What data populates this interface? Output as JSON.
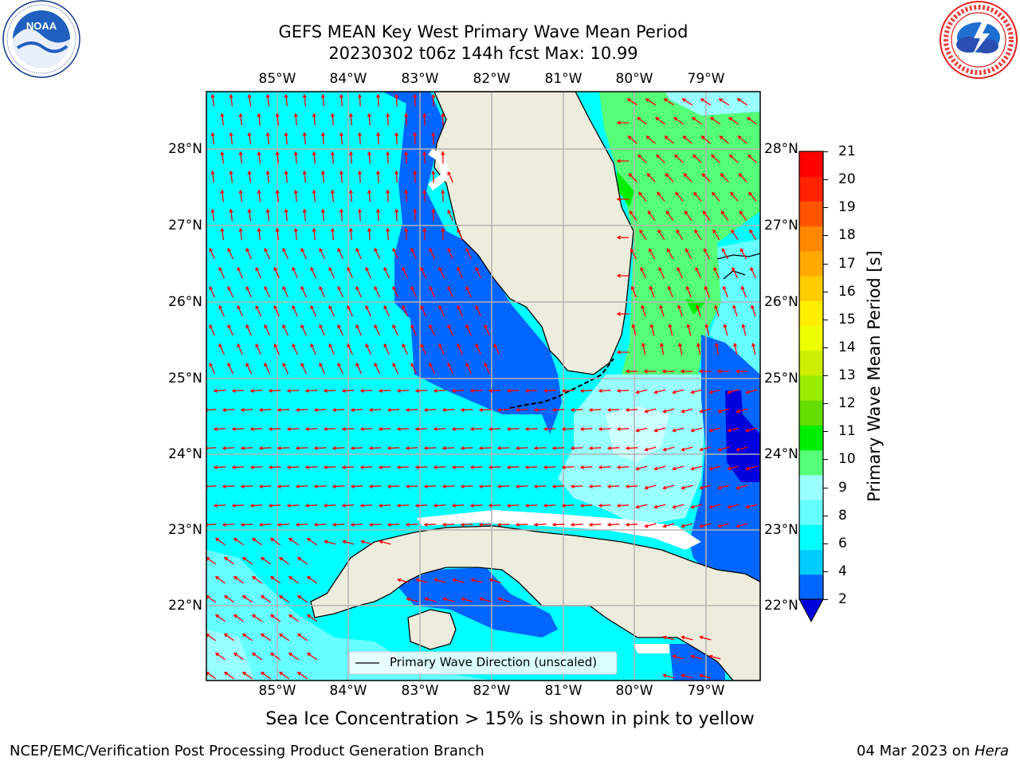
{
  "header": {
    "title_line1": "GEFS MEAN Key West Primary Wave Mean Period",
    "title_line2": "20230302 t06z 144h fcst   Max: 10.99"
  },
  "logos": {
    "left": {
      "name": "NOAA",
      "ring_text": "NATIONAL OCEANIC AND ATMOSPHERIC ADMINISTRATION · U.S. DEPARTMENT OF COMMERCE"
    },
    "right": {
      "ring_text": "NATIONAL WEATHER SERVICE"
    }
  },
  "map": {
    "lon_labels": [
      "85°W",
      "84°W",
      "83°W",
      "82°W",
      "81°W",
      "80°W",
      "79°W"
    ],
    "lat_labels": [
      "28°N",
      "27°N",
      "26°N",
      "25°N",
      "24°N",
      "23°N",
      "22°N"
    ],
    "legend_label": "Primary Wave Direction (unscaled)",
    "colors": {
      "land": "#eeecdc",
      "arrows": "#ff0000",
      "grid": "#b4b4b4",
      "coast": "#000000"
    }
  },
  "colorbar": {
    "title": "Primary Wave Mean Period [s]",
    "ticks": [
      "2",
      "4",
      "6",
      "8",
      "9",
      "10",
      "11",
      "12",
      "13",
      "14",
      "15",
      "16",
      "17",
      "18",
      "19",
      "20",
      "21"
    ],
    "colors": [
      "#0066ff",
      "#00ccff",
      "#00ffff",
      "#66ffff",
      "#99ffff",
      "#55ff77",
      "#00ee00",
      "#66dd00",
      "#99ee00",
      "#ccee00",
      "#eeff00",
      "#ffee00",
      "#ffcc00",
      "#ffaa00",
      "#ff8800",
      "#ff5500",
      "#ff2200",
      "#ff0000"
    ],
    "under_color": "#0000dd"
  },
  "footer": {
    "note": "Sea Ice Concentration > 15% is shown in pink to yellow",
    "left": "NCEP/EMC/Verification Post Processing Product Generation Branch",
    "right_date": "04 Mar 2023 on ",
    "right_host": "Hera"
  }
}
